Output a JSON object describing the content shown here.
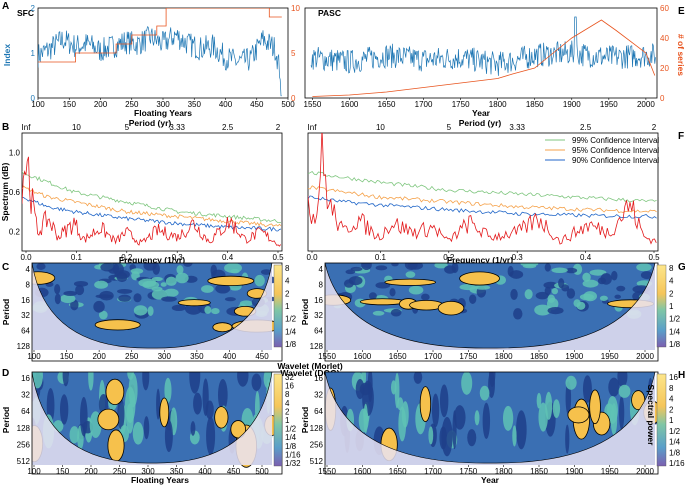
{
  "colors": {
    "index": "#1f77b4",
    "series": "#e8541e",
    "ci99": "#7fc67f",
    "ci95": "#f5a24b",
    "ci90": "#2066c8",
    "spectrum": "#e31a1c",
    "bg": "#ffffff"
  },
  "panels": {
    "A": {
      "letter": "A",
      "name": "SFC",
      "ylabel": "Index",
      "xlabel": "Floating Years"
    },
    "E": {
      "letter": "E",
      "name": "PASC",
      "ylabel": "# of series",
      "xlabel": "Year"
    },
    "B": {
      "letter": "B",
      "xlabel": "Frequency (1/yr)",
      "ylabel": "Spectrum (dB)",
      "toplabel": "Period (yr)"
    },
    "F": {
      "letter": "F",
      "xlabel": "Frequency (1/yr)"
    },
    "C": {
      "letter": "C",
      "ylabel": "Period",
      "title": "Wavelet (Morlet)"
    },
    "G": {
      "letter": "G",
      "ylabel": "Period"
    },
    "D": {
      "letter": "D",
      "ylabel": "Period",
      "xlabel": "Floating Years",
      "title": "Wavelet (DOG)"
    },
    "H": {
      "letter": "H",
      "ylabel": "Period",
      "xlabel": "Year",
      "cbar_label": "Spectral power"
    }
  },
  "legend": {
    "ci99": "99% Confidence Interval",
    "ci95": "95% Confidence Interval",
    "ci90": "90% Confidence Interval"
  },
  "colorbar_labels": {
    "C": [
      "8",
      "4",
      "2",
      "1",
      "1/2",
      "1/4",
      "1/8"
    ],
    "G": [
      "8",
      "4",
      "2",
      "1",
      "1/2",
      "1/4",
      "1/8"
    ],
    "D": [
      "32",
      "16",
      "8",
      "4",
      "2",
      "1",
      "1/2",
      "1/4",
      "1/8",
      "1/16",
      "1/32"
    ],
    "H": [
      "16",
      "8",
      "4",
      "2",
      "1",
      "1/2",
      "1/4",
      "1/8",
      "1/16"
    ]
  },
  "chart_data": [
    {
      "panel": "A",
      "type": "line",
      "title": "SFC",
      "xlabel": "Floating Years",
      "ylabel": "Index",
      "xlim": [
        100,
        500
      ],
      "ylim": [
        0,
        2
      ],
      "y2label": "",
      "y2lim": [
        0,
        10
      ],
      "xticks": [
        "100",
        "150",
        "200",
        "250",
        "300",
        "350",
        "400",
        "450",
        "500"
      ],
      "yticks": [
        "0",
        "1",
        "2"
      ],
      "y2ticks": [
        "0",
        "5",
        "10"
      ],
      "series": [
        {
          "name": "Index",
          "axis": "left",
          "x": [
            100,
            120,
            140,
            160,
            180,
            200,
            220,
            240,
            260,
            280,
            300,
            320,
            340,
            360,
            380,
            400,
            420,
            440,
            460,
            480,
            490
          ],
          "values": [
            0.95,
            1.1,
            1.3,
            1.15,
            1.2,
            1.05,
            1.15,
            1.25,
            1.2,
            1.35,
            1.2,
            1.4,
            1.2,
            1.1,
            1.15,
            0.9,
            0.8,
            0.85,
            1.3,
            1.1,
            0.4
          ]
        },
        {
          "name": "# of series",
          "axis": "right",
          "x": [
            100,
            160,
            160,
            225,
            225,
            250,
            250,
            290,
            290,
            305,
            305,
            470,
            470,
            490
          ],
          "values": [
            4,
            4,
            5,
            5,
            6,
            6,
            7,
            7,
            8,
            8,
            10,
            10,
            9,
            9
          ]
        }
      ]
    },
    {
      "panel": "E",
      "type": "line",
      "title": "PASC",
      "xlabel": "Year",
      "ylabel": "# of series",
      "xlim": [
        1540,
        2015
      ],
      "ylim": [
        -1,
        3
      ],
      "y2lim": [
        0,
        60
      ],
      "xticks": [
        "1550",
        "1600",
        "1650",
        "1700",
        "1750",
        "1800",
        "1850",
        "1900",
        "1950",
        "2000"
      ],
      "y2ticks": [
        "0",
        "20",
        "40",
        "60"
      ],
      "series": [
        {
          "name": "Index",
          "axis": "left",
          "x": [
            1550,
            1600,
            1650,
            1700,
            1750,
            1800,
            1850,
            1900,
            1950,
            2000
          ],
          "values": [
            0.8,
            0.6,
            0.9,
            0.7,
            0.8,
            0.5,
            0.9,
            1.0,
            0.8,
            0.9
          ]
        },
        {
          "name": "# of series",
          "axis": "right",
          "x": [
            1550,
            1600,
            1650,
            1700,
            1750,
            1800,
            1820,
            1850,
            1870,
            1900,
            1940,
            1960,
            2000,
            2012
          ],
          "values": [
            1,
            2,
            4,
            7,
            10,
            13,
            16,
            20,
            28,
            40,
            52,
            45,
            30,
            15
          ]
        }
      ]
    },
    {
      "panel": "B",
      "type": "line",
      "xlabel": "Frequency (1/yr)",
      "ylabel": "Spectrum (dB)",
      "xlim": [
        0,
        0.5
      ],
      "ylim": [
        0,
        1.2
      ],
      "xticks": [
        "0.0",
        "0.1",
        "0.2",
        "0.3",
        "0.4",
        "0.5"
      ],
      "yticks": [
        "0.2",
        "0.6",
        "1.0"
      ],
      "period_ticks": [
        "Inf",
        "10",
        "5",
        "3.33",
        "2.5",
        "2"
      ],
      "series": [
        {
          "name": "99% Confidence Interval",
          "x": [
            0,
            0.05,
            0.1,
            0.2,
            0.3,
            0.4,
            0.5
          ],
          "values": [
            0.8,
            0.7,
            0.6,
            0.5,
            0.4,
            0.35,
            0.3
          ]
        },
        {
          "name": "95% Confidence Interval",
          "x": [
            0,
            0.05,
            0.1,
            0.2,
            0.3,
            0.4,
            0.5
          ],
          "values": [
            0.65,
            0.55,
            0.5,
            0.4,
            0.35,
            0.3,
            0.25
          ]
        },
        {
          "name": "90% Confidence Interval",
          "x": [
            0,
            0.05,
            0.1,
            0.2,
            0.3,
            0.4,
            0.5
          ],
          "values": [
            0.55,
            0.45,
            0.4,
            0.33,
            0.28,
            0.24,
            0.22
          ]
        },
        {
          "name": "Spectrum",
          "x": [
            0,
            0.01,
            0.02,
            0.03,
            0.05,
            0.07,
            0.1,
            0.12,
            0.15,
            0.18,
            0.2,
            0.23,
            0.26,
            0.3,
            0.33,
            0.36,
            0.4,
            0.43,
            0.46,
            0.5
          ],
          "values": [
            0.8,
            1.0,
            0.5,
            0.2,
            0.35,
            0.15,
            0.3,
            0.12,
            0.25,
            0.1,
            0.2,
            0.08,
            0.22,
            0.15,
            0.3,
            0.1,
            0.32,
            0.12,
            0.2,
            0.05
          ]
        }
      ]
    },
    {
      "panel": "F",
      "type": "line",
      "xlabel": "Frequency (1/yr)",
      "xlim": [
        0,
        0.5
      ],
      "ylim": [
        0,
        1.2
      ],
      "xticks": [
        "0.0",
        "0.1",
        "0.2",
        "0.3",
        "0.4",
        "0.5"
      ],
      "period_ticks": [
        "Inf",
        "10",
        "5",
        "3.33",
        "2.5",
        "2"
      ],
      "series": [
        {
          "name": "99% Confidence Interval",
          "x": [
            0,
            0.05,
            0.1,
            0.2,
            0.3,
            0.4,
            0.5
          ],
          "values": [
            0.8,
            0.75,
            0.7,
            0.62,
            0.58,
            0.54,
            0.5
          ]
        },
        {
          "name": "95% Confidence Interval",
          "x": [
            0,
            0.05,
            0.1,
            0.2,
            0.3,
            0.4,
            0.5
          ],
          "values": [
            0.65,
            0.6,
            0.55,
            0.5,
            0.45,
            0.42,
            0.4
          ]
        },
        {
          "name": "90% Confidence Interval",
          "x": [
            0,
            0.05,
            0.1,
            0.2,
            0.3,
            0.4,
            0.5
          ],
          "values": [
            0.55,
            0.5,
            0.47,
            0.42,
            0.38,
            0.36,
            0.35
          ]
        },
        {
          "name": "Spectrum",
          "x": [
            0,
            0.01,
            0.02,
            0.03,
            0.05,
            0.07,
            0.1,
            0.12,
            0.15,
            0.18,
            0.2,
            0.23,
            0.26,
            0.3,
            0.33,
            0.36,
            0.4,
            0.43,
            0.46,
            0.48,
            0.5
          ],
          "values": [
            0.6,
            0.3,
            1.0,
            0.5,
            0.2,
            0.35,
            0.15,
            0.3,
            0.2,
            0.25,
            0.1,
            0.3,
            0.15,
            0.2,
            0.35,
            0.1,
            0.28,
            0.2,
            0.5,
            0.15,
            0.1
          ]
        }
      ]
    },
    {
      "panel": "C",
      "type": "heatmap",
      "title": "Wavelet (Morlet)",
      "ylabel": "Period",
      "xticks": [
        "100",
        "150",
        "200",
        "250",
        "300",
        "350",
        "400",
        "450"
      ],
      "yticks": [
        "4",
        "8",
        "16",
        "32",
        "64",
        "128"
      ]
    },
    {
      "panel": "G",
      "type": "heatmap",
      "ylabel": "Period",
      "xticks": [
        "1550",
        "1600",
        "1650",
        "1700",
        "1750",
        "1800",
        "1850",
        "1900",
        "1950",
        "2000"
      ],
      "yticks": [
        "4",
        "8",
        "16",
        "32",
        "64",
        "128"
      ]
    },
    {
      "panel": "D",
      "type": "heatmap",
      "title": "Wavelet (DOG)",
      "xlabel": "Floating Years",
      "ylabel": "Period",
      "xticks": [
        "100",
        "150",
        "200",
        "250",
        "300",
        "350",
        "400",
        "450",
        "500"
      ],
      "yticks": [
        "16",
        "32",
        "64",
        "128",
        "256",
        "512"
      ]
    },
    {
      "panel": "H",
      "type": "heatmap",
      "xlabel": "Year",
      "ylabel": "Period",
      "xticks": [
        "1550",
        "1600",
        "1650",
        "1700",
        "1750",
        "1800",
        "1850",
        "1900",
        "1950",
        "2000"
      ],
      "yticks": [
        "16",
        "32",
        "64",
        "128",
        "256",
        "512"
      ]
    }
  ]
}
